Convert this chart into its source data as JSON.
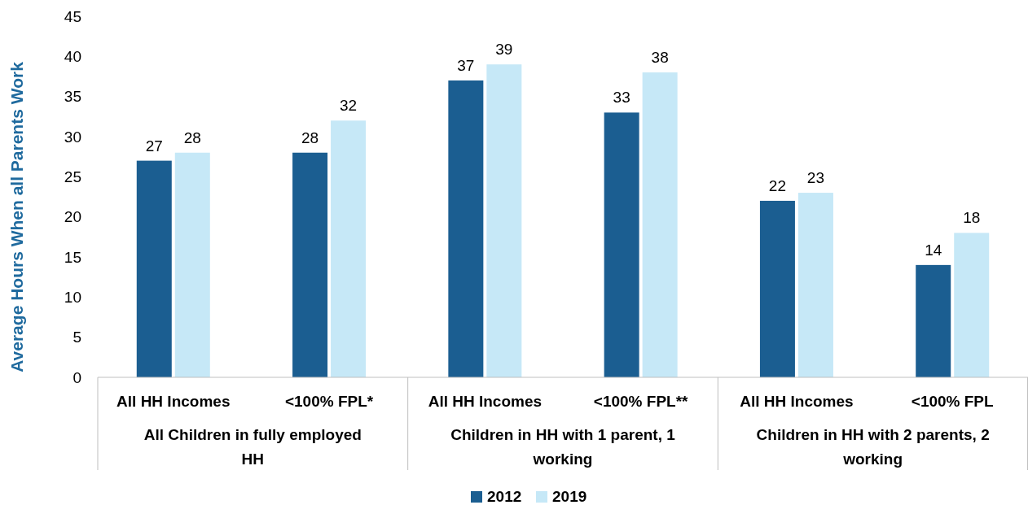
{
  "chart_data": {
    "type": "bar",
    "ylabel": "Average Hours When all Parents Work",
    "categories": [
      "All HH Incomes",
      "<100% FPL*",
      "All HH Incomes",
      "<100% FPL**",
      "All HH Incomes",
      "<100% FPL"
    ],
    "series": [
      {
        "name": "2012",
        "color": "#1b5e91",
        "values": [
          27,
          28,
          37,
          33,
          22,
          14
        ]
      },
      {
        "name": "2019",
        "color": "#c6e8f7",
        "values": [
          28,
          32,
          39,
          38,
          23,
          18
        ]
      }
    ],
    "annotations": [
      "All Children in fully employed HH",
      "Children in HH with 1 parent, 1 working",
      "Children in HH with 2 parents, 2 working"
    ],
    "ylim": [
      0,
      45
    ],
    "yticks": [
      0,
      5,
      10,
      15,
      20,
      25,
      30,
      35,
      40,
      45
    ],
    "data_labels": true,
    "grid": false,
    "legend": "bottom"
  }
}
